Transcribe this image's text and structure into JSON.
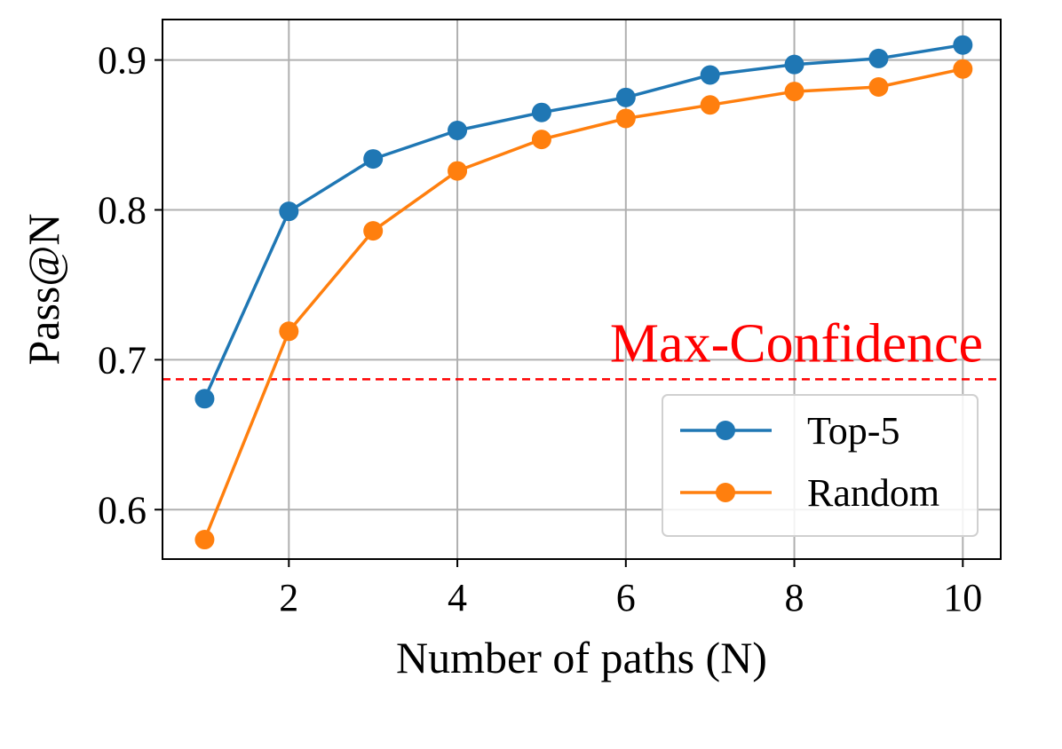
{
  "chart_data": {
    "type": "line",
    "xlabel": "Number of paths (N)",
    "ylabel": "Pass@N",
    "xlim": [
      0.5,
      10.45
    ],
    "ylim": [
      0.567,
      0.927
    ],
    "xticks": [
      2,
      4,
      6,
      8,
      10
    ],
    "yticks": [
      0.6,
      0.7,
      0.8,
      0.9
    ],
    "xtick_labels": [
      "2",
      "4",
      "6",
      "8",
      "10"
    ],
    "ytick_labels": [
      "0.6",
      "0.7",
      "0.8",
      "0.9"
    ],
    "grid": true,
    "legend_position": "lower-right",
    "x": [
      1,
      2,
      3,
      4,
      5,
      6,
      7,
      8,
      9,
      10
    ],
    "series": [
      {
        "name": "Top-5",
        "color": "#1f77b4",
        "values": [
          0.674,
          0.799,
          0.834,
          0.853,
          0.865,
          0.875,
          0.89,
          0.897,
          0.901,
          0.91
        ]
      },
      {
        "name": "Random",
        "color": "#ff7f0e",
        "values": [
          0.58,
          0.719,
          0.786,
          0.826,
          0.847,
          0.861,
          0.87,
          0.879,
          0.882,
          0.894
        ]
      }
    ],
    "reference_line": {
      "label": "Max-Confidence",
      "value": 0.687,
      "color": "#ff0000",
      "style": "dashed"
    }
  }
}
